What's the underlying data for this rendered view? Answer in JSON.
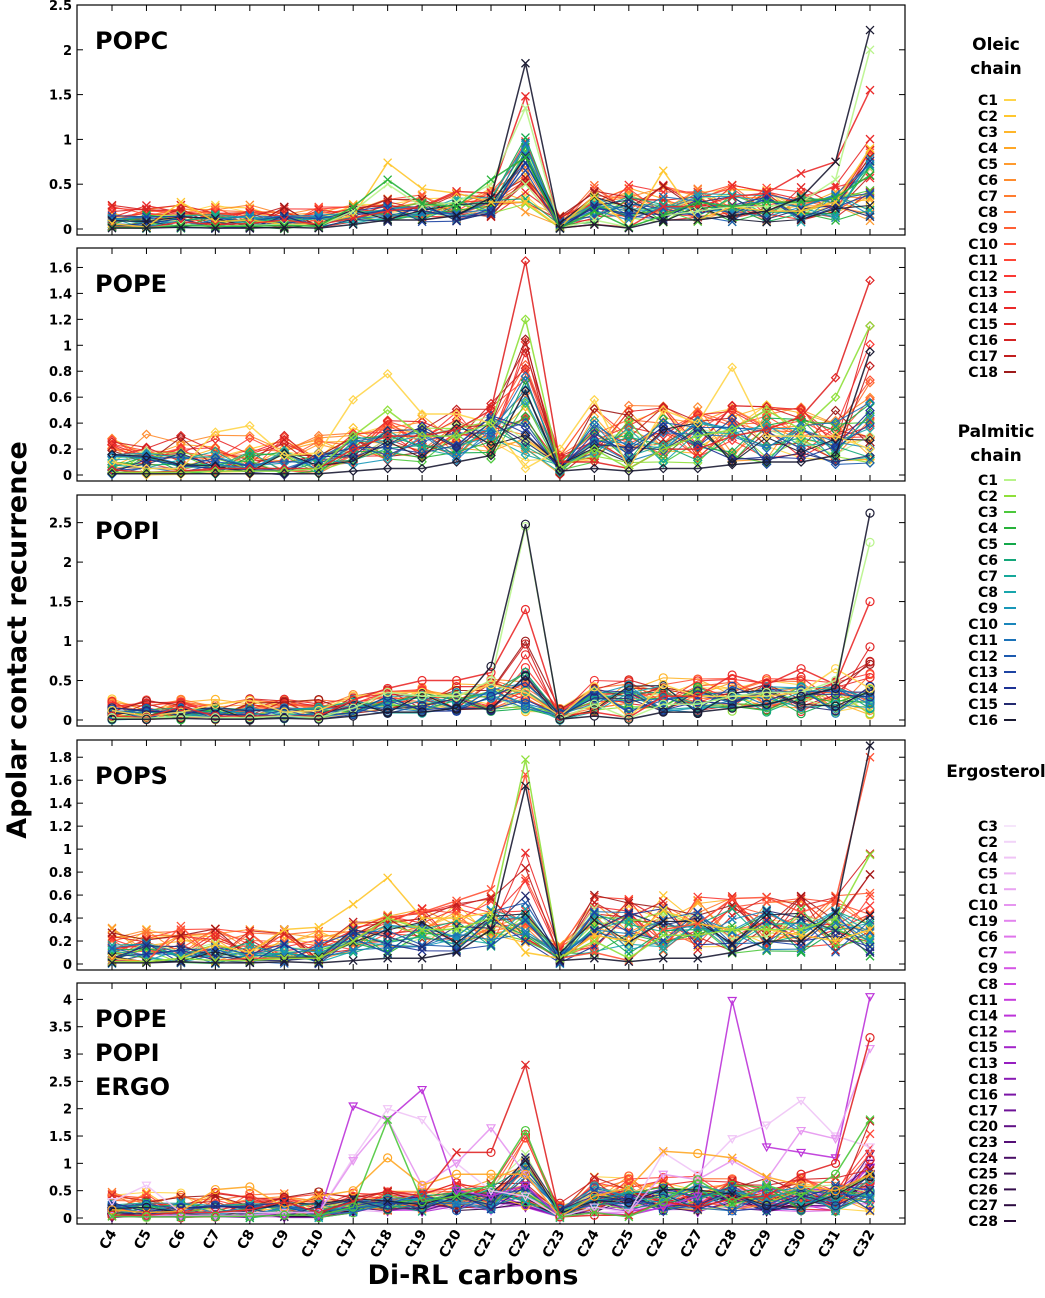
{
  "chart_data": {
    "type": "line",
    "xlabel": "Di-RL carbons",
    "ylabel": "Apolar contact recurrence",
    "categories": [
      "C4",
      "C5",
      "C6",
      "C7",
      "C8",
      "C9",
      "C10",
      "C17",
      "C18",
      "C19",
      "C20",
      "C21",
      "C22",
      "C23",
      "C24",
      "C25",
      "C26",
      "C27",
      "C28",
      "C29",
      "C30",
      "C31",
      "C32"
    ],
    "legend": {
      "groups": [
        {
          "title": "Oleic chain",
          "title_lines": [
            "Oleic",
            "chain"
          ],
          "colors": "oleic",
          "items": [
            "C1",
            "C2",
            "C3",
            "C4",
            "C5",
            "C6",
            "C7",
            "C8",
            "C9",
            "C10",
            "C11",
            "C12",
            "C13",
            "C14",
            "C15",
            "C16",
            "C17",
            "C18"
          ]
        },
        {
          "title": "Palmitic chain",
          "title_lines": [
            "Palmitic",
            "chain"
          ],
          "colors": "palmitic",
          "items": [
            "C1",
            "C2",
            "C3",
            "C4",
            "C5",
            "C6",
            "C7",
            "C8",
            "C9",
            "C10",
            "C11",
            "C12",
            "C13",
            "C14",
            "C15",
            "C16"
          ]
        },
        {
          "title": "Ergosterol",
          "title_lines": [
            "Ergosterol"
          ],
          "colors": "ergosterol",
          "items": [
            "C3",
            "C2",
            "C4",
            "C5",
            "C1",
            "C10",
            "C19",
            "C6",
            "C7",
            "C9",
            "C8",
            "C11",
            "C14",
            "C12",
            "C15",
            "C13",
            "C18",
            "C16",
            "C17",
            "C20",
            "C23",
            "C24",
            "C25",
            "C26",
            "C27",
            "C28"
          ]
        }
      ]
    },
    "palettes": {
      "oleic": [
        "#ffd54a",
        "#ffc72e",
        "#ffb62a",
        "#ffa726",
        "#ff9b2e",
        "#ff8c2e",
        "#ff7d30",
        "#ff6e32",
        "#ff6035",
        "#ff5236",
        "#ff4536",
        "#fb3a35",
        "#f43232",
        "#ea2a2a",
        "#e02626",
        "#d42323",
        "#c21f1f",
        "#9e1a1a"
      ],
      "palmitic": [
        "#b8f48a",
        "#8fe03a",
        "#4cc83c",
        "#27b23a",
        "#13a84a",
        "#14a77a",
        "#16a89a",
        "#18a6ac",
        "#1897b8",
        "#1a86bb",
        "#1b72b8",
        "#1c5aaf",
        "#1d44a3",
        "#1c3295",
        "#232a70",
        "#1b1b33"
      ],
      "ergosterol": [
        "#f6e6fb",
        "#f2d4f8",
        "#f0c4f6",
        "#ecb4f4",
        "#e9a4f2",
        "#e696f0",
        "#e384ee",
        "#df74eb",
        "#da64e8",
        "#d555e5",
        "#cf48e2",
        "#c63cde",
        "#bd33d9",
        "#b02bd2",
        "#a325ca",
        "#961fc0",
        "#8919b4",
        "#7b15a6",
        "#6e1297",
        "#611086",
        "#550f76",
        "#490e66",
        "#3e0d57",
        "#330c4a",
        "#2c0b40",
        "#280a38"
      ]
    },
    "panels": [
      {
        "label_lines": [
          "POPC"
        ],
        "ylim": [
          0,
          2.5
        ],
        "yticks": [
          "0",
          "0.5",
          "1",
          "1.5",
          "2",
          "2.5"
        ],
        "ytick_values": [
          0,
          0.5,
          1,
          1.5,
          2,
          2.5
        ],
        "marker": "x",
        "highlights": [
          {
            "name": "oleic C2",
            "color": "#ffc72e",
            "values": [
              0.06,
              0.02,
              0.3,
              0.08,
              0.1,
              0.05,
              0.06,
              0.15,
              0.74,
              0.45,
              0.4,
              0.3,
              0.3,
              0.02,
              0.37,
              0.02,
              0.65,
              0.1,
              0.25,
              0.2,
              0.2,
              0.3,
              0.9
            ]
          },
          {
            "name": "oleic C14",
            "color": "#ea2a2a",
            "values": [
              0.03,
              0.01,
              0.08,
              0.05,
              0.06,
              0.1,
              0.05,
              0.12,
              0.2,
              0.25,
              0.42,
              0.4,
              1.48,
              0.01,
              0.05,
              0.02,
              0.25,
              0.25,
              0.36,
              0.4,
              0.62,
              0.75,
              1.55
            ]
          },
          {
            "name": "palmitic C1",
            "color": "#b8f48a",
            "values": [
              0.02,
              0.01,
              0.05,
              0.03,
              0.04,
              0.05,
              0.03,
              0.2,
              0.5,
              0.25,
              0.3,
              0.5,
              1.35,
              0.01,
              0.1,
              0.02,
              0.15,
              0.2,
              0.25,
              0.25,
              0.3,
              0.55,
              2.0
            ]
          },
          {
            "name": "palmitic C4",
            "color": "#27b23a",
            "values": [
              0.02,
              0.01,
              0.04,
              0.03,
              0.03,
              0.04,
              0.03,
              0.25,
              0.55,
              0.28,
              0.25,
              0.55,
              0.8,
              0.01,
              0.2,
              0.02,
              0.15,
              0.3,
              0.25,
              0.3,
              0.3,
              0.35,
              0.6
            ]
          },
          {
            "name": "palmitic C16",
            "color": "#1b1b33",
            "values": [
              0.01,
              0.01,
              0.02,
              0.01,
              0.01,
              0.02,
              0.01,
              0.05,
              0.1,
              0.1,
              0.15,
              0.35,
              1.85,
              0.01,
              0.05,
              0.01,
              0.1,
              0.1,
              0.15,
              0.2,
              0.35,
              0.75,
              2.22
            ]
          }
        ],
        "peaks": [
          1.5,
          2.0,
          0.3,
          0.36,
          0.45
        ]
      },
      {
        "label_lines": [
          "POPE"
        ],
        "ylim": [
          0,
          1.75
        ],
        "yticks": [
          "0",
          "0.2",
          "0.4",
          "0.6",
          "0.8",
          "1",
          "1.2",
          "1.4",
          "1.6"
        ],
        "ytick_values": [
          0,
          0.2,
          0.4,
          0.6,
          0.8,
          1,
          1.2,
          1.4,
          1.6
        ],
        "marker": "diamond",
        "highlights": [
          {
            "name": "oleic C1",
            "color": "#ffd54a",
            "values": [
              0.1,
              0.05,
              0.05,
              0.33,
              0.38,
              0.15,
              0.17,
              0.58,
              0.78,
              0.47,
              0.47,
              0.4,
              0.05,
              0.2,
              0.58,
              0.05,
              0.5,
              0.4,
              0.83,
              0.3,
              0.3,
              0.3,
              0.2
            ]
          },
          {
            "name": "oleic C15",
            "color": "#e02626",
            "values": [
              0.04,
              0.02,
              0.03,
              0.05,
              0.05,
              0.05,
              0.05,
              0.2,
              0.3,
              0.3,
              0.35,
              0.5,
              1.65,
              0.1,
              0.1,
              0.05,
              0.2,
              0.2,
              0.3,
              0.35,
              0.45,
              0.75,
              1.5
            ]
          },
          {
            "name": "palmitic C2",
            "color": "#8fe03a",
            "values": [
              0.02,
              0.02,
              0.02,
              0.03,
              0.03,
              0.03,
              0.05,
              0.3,
              0.5,
              0.3,
              0.3,
              0.4,
              1.2,
              0.05,
              0.2,
              0.05,
              0.2,
              0.3,
              0.35,
              0.5,
              0.35,
              0.6,
              1.15
            ]
          },
          {
            "name": "palmitic C16",
            "color": "#1b1b33",
            "values": [
              0.01,
              0.01,
              0.01,
              0.01,
              0.01,
              0.01,
              0.01,
              0.03,
              0.05,
              0.05,
              0.1,
              0.15,
              0.65,
              0.03,
              0.05,
              0.03,
              0.05,
              0.05,
              0.08,
              0.1,
              0.1,
              0.15,
              0.95
            ]
          }
        ],
        "peaks": [
          1.45,
          1.4,
          0.35,
          0.45,
          0.5
        ]
      },
      {
        "label_lines": [
          "POPI"
        ],
        "ylim": [
          0,
          2.85
        ],
        "yticks": [
          "0",
          "0.5",
          "1",
          "1.5",
          "2",
          "2.5"
        ],
        "ytick_values": [
          0,
          0.5,
          1,
          1.5,
          2,
          2.5
        ],
        "marker": "circle",
        "highlights": [
          {
            "name": "oleic C1",
            "color": "#ffd54a",
            "values": [
              0.12,
              0.05,
              0.1,
              0.2,
              0.25,
              0.1,
              0.12,
              0.3,
              0.35,
              0.35,
              0.3,
              0.45,
              0.35,
              0.05,
              0.42,
              0.03,
              0.45,
              0.3,
              0.3,
              0.3,
              0.35,
              0.65,
              0.4
            ]
          },
          {
            "name": "oleic C14",
            "color": "#ea2a2a",
            "values": [
              0.05,
              0.03,
              0.17,
              0.05,
              0.05,
              0.05,
              0.05,
              0.25,
              0.4,
              0.5,
              0.5,
              0.6,
              1.4,
              0.05,
              0.1,
              0.03,
              0.3,
              0.3,
              0.57,
              0.45,
              0.65,
              0.45,
              1.5
            ]
          },
          {
            "name": "palmitic C1",
            "color": "#b8f48a",
            "values": [
              0.03,
              0.02,
              0.05,
              0.03,
              0.03,
              0.05,
              0.03,
              0.15,
              0.35,
              0.3,
              0.3,
              0.5,
              2.45,
              0.02,
              0.2,
              0.02,
              0.2,
              0.2,
              0.3,
              0.35,
              0.35,
              0.5,
              2.25
            ]
          },
          {
            "name": "palmitic C16",
            "color": "#1b1b33",
            "values": [
              0.01,
              0.01,
              0.02,
              0.01,
              0.01,
              0.02,
              0.01,
              0.05,
              0.1,
              0.1,
              0.15,
              0.68,
              2.48,
              0.01,
              0.05,
              0.01,
              0.1,
              0.1,
              0.15,
              0.2,
              0.3,
              0.4,
              2.62
            ]
          }
        ],
        "peaks": [
          1.1,
          1.1,
          0.3,
          0.4,
          0.5
        ]
      },
      {
        "label_lines": [
          "POPS"
        ],
        "ylim": [
          0,
          1.95
        ],
        "yticks": [
          "0",
          "0.2",
          "0.4",
          "0.6",
          "0.8",
          "1",
          "1.2",
          "1.4",
          "1.6",
          "1.8"
        ],
        "ytick_values": [
          0,
          0.2,
          0.4,
          0.6,
          0.8,
          1,
          1.2,
          1.4,
          1.6,
          1.8
        ],
        "marker": "x",
        "highlights": [
          {
            "name": "oleic C2",
            "color": "#ffc72e",
            "values": [
              0.05,
              0.02,
              0.05,
              0.17,
              0.1,
              0.3,
              0.32,
              0.52,
              0.75,
              0.4,
              0.4,
              0.45,
              0.1,
              0.05,
              0.25,
              0.2,
              0.47,
              0.35,
              0.3,
              0.3,
              0.25,
              0.2,
              0.3
            ]
          },
          {
            "name": "oleic C10",
            "color": "#ff5236",
            "values": [
              0.03,
              0.02,
              0.33,
              0.03,
              0.05,
              0.05,
              0.05,
              0.2,
              0.4,
              0.45,
              0.55,
              0.65,
              1.65,
              0.05,
              0.1,
              0.03,
              0.3,
              0.35,
              0.57,
              0.58,
              0.45,
              0.55,
              1.8
            ]
          },
          {
            "name": "palmitic C2",
            "color": "#8fe03a",
            "values": [
              0.02,
              0.02,
              0.05,
              0.03,
              0.03,
              0.05,
              0.05,
              0.2,
              0.4,
              0.3,
              0.3,
              0.4,
              1.78,
              0.05,
              0.2,
              0.05,
              0.25,
              0.25,
              0.3,
              0.3,
              0.3,
              0.4,
              0.95
            ]
          },
          {
            "name": "palmitic C16",
            "color": "#1b1b33",
            "values": [
              0.01,
              0.01,
              0.02,
              0.01,
              0.01,
              0.02,
              0.01,
              0.03,
              0.05,
              0.05,
              0.1,
              0.3,
              1.55,
              0.03,
              0.05,
              0.02,
              0.05,
              0.05,
              0.1,
              0.2,
              0.2,
              0.45,
              1.9
            ]
          }
        ],
        "peaks": [
          1.2,
          1.1,
          0.35,
          0.45,
          0.55
        ]
      },
      {
        "label_lines": [
          "POPE",
          "POPI",
          "ERGO"
        ],
        "ylim": [
          0,
          4.3
        ],
        "yticks": [
          "0",
          "0.5",
          "1",
          "1.5",
          "2",
          "2.5",
          "3",
          "3.5",
          "4"
        ],
        "ytick_values": [
          0,
          0.5,
          1,
          1.5,
          2,
          2.5,
          3,
          3.5,
          4
        ],
        "marker": "mixed",
        "highlights": [
          {
            "name": "ergosterol C14",
            "color": "#bd33d9",
            "values": [
              0.05,
              0.02,
              0.02,
              0.03,
              0.05,
              0.05,
              0.05,
              2.05,
              1.8,
              2.35,
              0.5,
              0.4,
              0.6,
              0.02,
              0.1,
              0.05,
              0.2,
              0.4,
              3.98,
              1.3,
              1.2,
              1.1,
              4.05
            ]
          },
          {
            "name": "ergosterol C4",
            "color": "#f0c4f6",
            "values": [
              0.3,
              0.6,
              0.1,
              0.1,
              0.1,
              0.1,
              0.1,
              1.1,
              2.0,
              1.8,
              1.0,
              0.5,
              0.4,
              0.02,
              0.2,
              0.1,
              1.2,
              0.8,
              1.45,
              1.7,
              2.15,
              1.5,
              1.3
            ]
          },
          {
            "name": "ergosterol C10",
            "color": "#e696f0",
            "values": [
              0.05,
              0.05,
              0.05,
              0.05,
              0.05,
              0.1,
              0.1,
              1.05,
              1.8,
              0.6,
              1.0,
              1.65,
              0.8,
              0.02,
              0.1,
              0.1,
              0.8,
              0.7,
              1.05,
              0.7,
              1.6,
              1.45,
              3.1
            ]
          },
          {
            "name": "oleic C4",
            "color": "#ffa726",
            "values": [
              0.15,
              0.1,
              0.12,
              0.52,
              0.57,
              0.2,
              0.4,
              0.5,
              1.1,
              0.6,
              0.8,
              0.8,
              0.8,
              0.02,
              0.4,
              0.55,
              1.22,
              1.18,
              1.1,
              0.75,
              0.6,
              0.5,
              0.8
            ]
          },
          {
            "name": "oleic C15",
            "color": "#e02626",
            "values": [
              0.05,
              0.05,
              0.1,
              0.1,
              0.15,
              0.3,
              0.1,
              0.3,
              0.5,
              0.4,
              1.2,
              1.2,
              2.8,
              0.02,
              0.05,
              0.05,
              0.3,
              0.2,
              0.35,
              0.4,
              0.8,
              1.0,
              3.3
            ]
          },
          {
            "name": "palmitic C3",
            "color": "#4cc83c",
            "values": [
              0.03,
              0.02,
              0.02,
              0.03,
              0.03,
              0.05,
              0.05,
              0.2,
              1.8,
              0.3,
              0.4,
              0.6,
              1.6,
              0.02,
              0.1,
              0.02,
              0.3,
              0.7,
              0.3,
              0.6,
              0.4,
              0.8,
              1.8
            ]
          }
        ],
        "peaks": [
          2.4,
          2.2,
          0.55,
          0.55,
          0.7
        ]
      }
    ]
  }
}
